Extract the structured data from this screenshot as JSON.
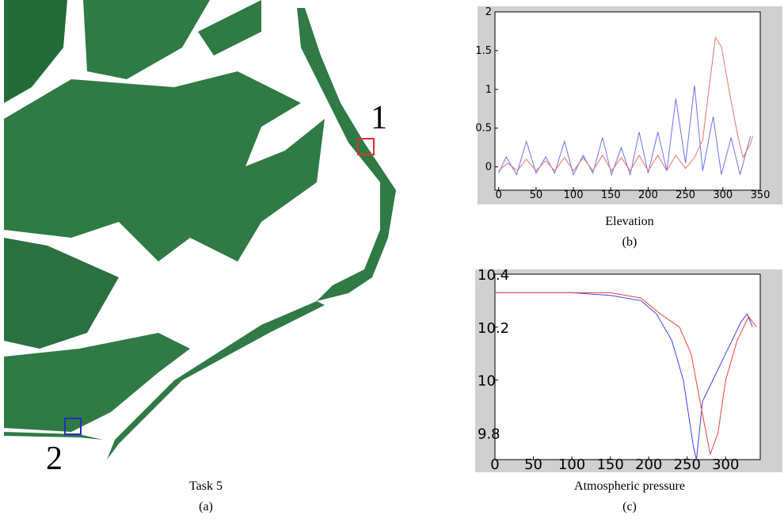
{
  "map": {
    "title": "Task 5",
    "label": "(a)",
    "markers": [
      {
        "label": "1",
        "color": "#e03030"
      },
      {
        "label": "2",
        "color": "#2030c0"
      }
    ]
  },
  "chart_data": [
    {
      "type": "line",
      "title": "Elevation",
      "label": "(b)",
      "xlim": [
        -5,
        350
      ],
      "xticks": [
        0,
        50,
        100,
        150,
        200,
        250,
        300,
        350
      ],
      "ylim": [
        -0.3,
        2
      ],
      "yticks": [
        0,
        0.5,
        1,
        1.5,
        2
      ],
      "series": [
        {
          "color": "#7070f0",
          "x": [
            0,
            10,
            24,
            37,
            50,
            63,
            75,
            88,
            100,
            113,
            126,
            139,
            151,
            164,
            176,
            188,
            200,
            213,
            225,
            237,
            250,
            262,
            273,
            287,
            298,
            311,
            323,
            337
          ],
          "values": [
            -0.08,
            0.13,
            -0.1,
            0.33,
            -0.08,
            0.13,
            -0.08,
            0.33,
            -0.1,
            0.15,
            -0.08,
            0.38,
            -0.1,
            0.25,
            -0.1,
            0.45,
            -0.08,
            0.45,
            -0.05,
            0.88,
            0.05,
            1.05,
            -0.05,
            0.65,
            -0.1,
            0.38,
            -0.1,
            0.4
          ]
        },
        {
          "color": "#f07070",
          "x": [
            0,
            12,
            25,
            37,
            50,
            63,
            75,
            88,
            100,
            113,
            126,
            139,
            151,
            164,
            176,
            188,
            200,
            213,
            225,
            237,
            250,
            262,
            273,
            280,
            290,
            298,
            310,
            320,
            327,
            337,
            340
          ],
          "values": [
            -0.05,
            0.05,
            -0.05,
            0.1,
            -0.05,
            0.08,
            -0.05,
            0.12,
            -0.05,
            0.12,
            -0.05,
            0.15,
            -0.05,
            0.12,
            -0.05,
            0.15,
            -0.05,
            0.15,
            -0.05,
            0.15,
            -0.02,
            0.12,
            0.35,
            0.9,
            1.67,
            1.55,
            0.9,
            0.4,
            0.12,
            0.3,
            0.4
          ]
        }
      ]
    },
    {
      "type": "line",
      "title": "Atmospheric pressure",
      "label": "(c)",
      "xlim": [
        0,
        345
      ],
      "xticks": [
        0,
        50,
        100,
        150,
        200,
        250,
        300
      ],
      "ylim": [
        9.7,
        10.4
      ],
      "yticks": [
        9.8,
        10,
        10.2,
        10.4
      ],
      "series": [
        {
          "color": "#4040f0",
          "x": [
            0,
            50,
            100,
            150,
            190,
            210,
            230,
            245,
            258,
            262,
            270,
            280,
            300,
            320,
            328,
            335
          ],
          "values": [
            10.33,
            10.33,
            10.33,
            10.32,
            10.3,
            10.25,
            10.15,
            10.0,
            9.75,
            9.7,
            9.92,
            9.98,
            10.1,
            10.22,
            10.25,
            10.2
          ]
        },
        {
          "color": "#f04040",
          "x": [
            0,
            50,
            100,
            150,
            190,
            215,
            240,
            255,
            268,
            280,
            290,
            300,
            315,
            330,
            340
          ],
          "values": [
            10.33,
            10.33,
            10.33,
            10.33,
            10.31,
            10.25,
            10.2,
            10.1,
            9.9,
            9.72,
            9.8,
            10.0,
            10.15,
            10.24,
            10.2
          ]
        }
      ]
    }
  ]
}
